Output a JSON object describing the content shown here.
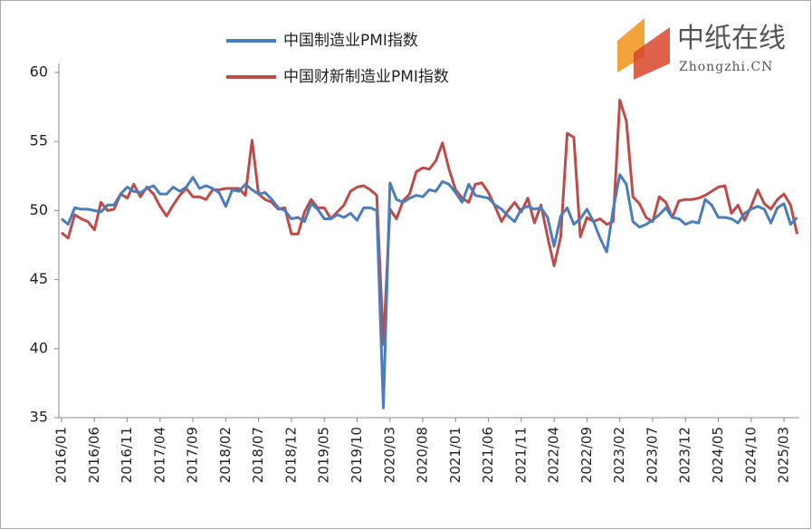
{
  "chart_data": {
    "type": "line",
    "legend": "top",
    "watermark": {
      "title": "中纸在线",
      "subtitle": "Zhongzhi.CN"
    },
    "categories": [
      "2016/01",
      null,
      null,
      null,
      null,
      "2016/06",
      null,
      null,
      null,
      null,
      "2016/11",
      null,
      null,
      null,
      null,
      "2017/04",
      null,
      null,
      null,
      null,
      "2017/09",
      null,
      null,
      null,
      null,
      "2018/02",
      null,
      null,
      null,
      null,
      "2018/07",
      null,
      null,
      null,
      null,
      "2018/12",
      null,
      null,
      null,
      null,
      "2019/05",
      null,
      null,
      null,
      null,
      "2019/10",
      null,
      null,
      null,
      null,
      "2020/03",
      null,
      null,
      null,
      null,
      "2020/08",
      null,
      null,
      null,
      null,
      "2021/01",
      null,
      null,
      null,
      null,
      "2021/06",
      null,
      null,
      null,
      null,
      "2021/11",
      null,
      null,
      null,
      null,
      "2022/04",
      null,
      null,
      null,
      null,
      "2022/09",
      null,
      null,
      null,
      null,
      "2023/02",
      null,
      null,
      null,
      null,
      "2023/07",
      null,
      null,
      null,
      null,
      "2023/12",
      null,
      null,
      null,
      null,
      "2024/05",
      null,
      null,
      null,
      null,
      "2024/10",
      null,
      null,
      null,
      null,
      "2025/03",
      null,
      null
    ],
    "series": [
      {
        "name": "中国制造业PMI指数",
        "color": "#4a7ebb",
        "values": [
          49.4,
          49.0,
          50.2,
          50.1,
          50.1,
          50.0,
          49.9,
          50.4,
          50.4,
          51.2,
          51.7,
          51.4,
          51.3,
          51.6,
          51.8,
          51.2,
          51.2,
          51.7,
          51.4,
          51.7,
          52.4,
          51.6,
          51.8,
          51.6,
          51.3,
          50.3,
          51.5,
          51.4,
          51.9,
          51.5,
          51.2,
          51.3,
          50.8,
          50.2,
          50.0,
          49.4,
          49.5,
          49.2,
          50.5,
          50.1,
          49.4,
          49.4,
          49.7,
          49.5,
          49.8,
          49.3,
          50.2,
          50.2,
          50.0,
          35.7,
          52.0,
          50.8,
          50.6,
          50.9,
          51.1,
          51.0,
          51.5,
          51.4,
          52.1,
          51.9,
          51.3,
          50.6,
          51.9,
          51.1,
          51.0,
          50.9,
          50.4,
          50.1,
          49.6,
          49.2,
          50.1,
          50.3,
          50.1,
          50.2,
          49.5,
          47.4,
          49.6,
          50.2,
          49.0,
          49.4,
          50.1,
          49.2,
          48.0,
          47.0,
          50.1,
          52.6,
          51.9,
          49.2,
          48.8,
          49.0,
          49.3,
          49.7,
          50.2,
          49.5,
          49.4,
          49.0,
          49.2,
          49.1,
          50.8,
          50.4,
          49.5,
          49.5,
          49.4,
          49.1,
          49.8,
          50.1,
          50.3,
          50.1,
          49.1,
          50.2,
          50.5,
          49.0,
          49.5
        ]
      },
      {
        "name": "中国财新制造业PMI指数",
        "color": "#be4b48",
        "values": [
          48.4,
          48.0,
          49.7,
          49.4,
          49.2,
          48.6,
          50.6,
          50.0,
          50.1,
          51.2,
          50.9,
          51.9,
          51.0,
          51.7,
          51.2,
          50.3,
          49.6,
          50.4,
          51.1,
          51.6,
          51.0,
          51.0,
          50.8,
          51.5,
          51.5,
          51.6,
          51.6,
          51.6,
          51.1,
          55.1,
          51.2,
          50.8,
          50.6,
          50.1,
          50.2,
          48.3,
          48.3,
          49.9,
          50.8,
          50.2,
          50.2,
          49.4,
          49.9,
          50.4,
          51.4,
          51.7,
          51.8,
          51.5,
          51.1,
          40.3,
          50.1,
          49.4,
          50.7,
          51.2,
          52.8,
          53.1,
          53.0,
          53.6,
          54.9,
          53.0,
          51.5,
          50.9,
          50.6,
          51.9,
          52.0,
          51.3,
          50.3,
          49.2,
          50.0,
          50.6,
          49.9,
          50.9,
          49.1,
          50.4,
          48.1,
          46.0,
          48.1,
          55.6,
          55.3,
          48.1,
          49.5,
          49.2,
          49.4,
          49.0,
          49.2,
          58.0,
          56.5,
          51.0,
          50.5,
          49.5,
          49.2,
          51.0,
          50.6,
          49.5,
          50.7,
          50.8,
          50.8,
          50.9,
          51.1,
          51.4,
          51.7,
          51.8,
          49.8,
          50.4,
          49.3,
          50.3,
          51.5,
          50.5,
          50.1,
          50.8,
          51.2,
          50.4,
          48.3
        ]
      }
    ],
    "ylim": [
      35,
      60
    ],
    "yticks": [
      35,
      40,
      45,
      50,
      55,
      60
    ],
    "grid": false
  }
}
